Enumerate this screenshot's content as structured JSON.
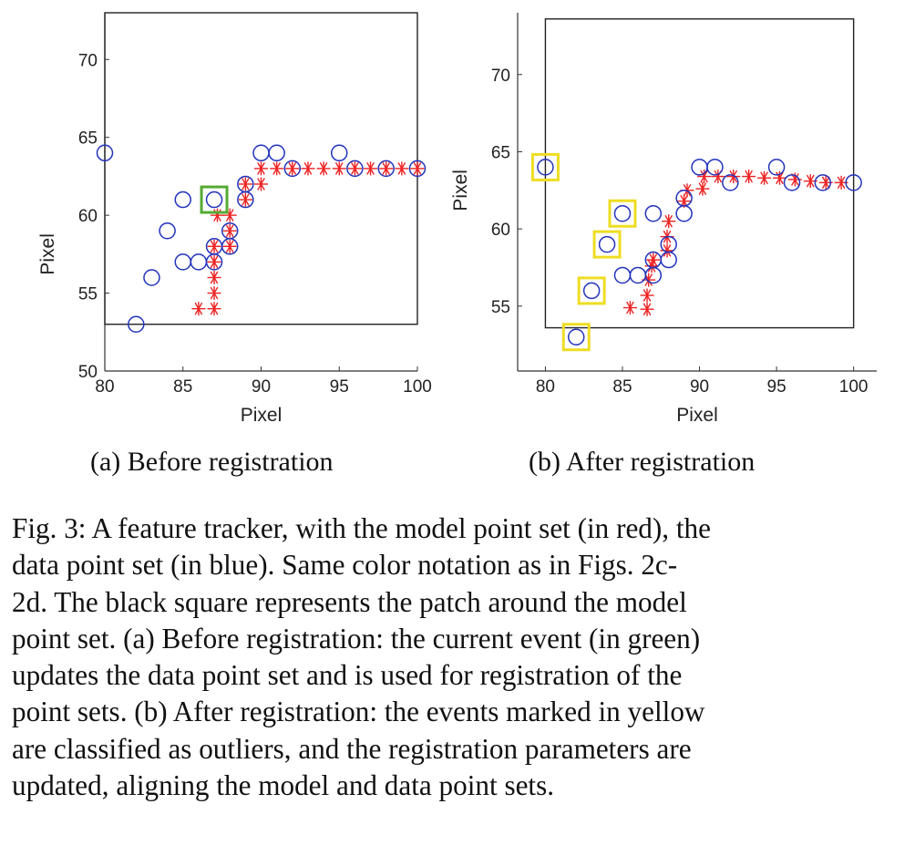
{
  "chart_data": [
    {
      "type": "scatter",
      "title": "",
      "xlabel": "Pixel",
      "ylabel": "Pixel",
      "xlim": [
        80,
        100
      ],
      "ylim": [
        50,
        73
      ],
      "xticks": [
        80,
        85,
        90,
        95,
        100
      ],
      "yticks": [
        50,
        55,
        60,
        65,
        70
      ],
      "grid": false,
      "series": [
        {
          "marker": "asterisk",
          "color": "#ee2222",
          "x": [
            86,
            87,
            87,
            87,
            87,
            87,
            87.2,
            88,
            88,
            88,
            89,
            89,
            90,
            90,
            91,
            92,
            93,
            94,
            95,
            96,
            97,
            98,
            99,
            100
          ],
          "y": [
            54,
            54,
            55,
            56,
            57,
            58,
            60,
            58,
            59,
            60,
            61,
            62,
            62,
            63,
            63,
            63,
            63,
            63,
            63,
            63,
            63,
            63,
            63,
            63
          ]
        },
        {
          "marker": "circle",
          "color": "#2233bb",
          "x": [
            80,
            82,
            83,
            84,
            85,
            85,
            86,
            87,
            87,
            87,
            88,
            88,
            89,
            89,
            90,
            91,
            92,
            95,
            96,
            98,
            100
          ],
          "y": [
            64,
            53,
            56,
            59,
            61,
            57,
            57,
            57,
            58,
            61,
            58,
            59,
            61,
            62,
            64,
            64,
            63,
            64,
            63,
            63,
            63
          ]
        }
      ],
      "highlight": {
        "color": "#55aa33",
        "points": [
          [
            87,
            61
          ]
        ]
      },
      "patch": {
        "x": [
          80,
          100
        ],
        "y": [
          53,
          73
        ]
      }
    },
    {
      "type": "scatter",
      "title": "",
      "xlabel": "Pixel",
      "ylabel": "Pixel",
      "xlim": [
        78.2,
        101.5
      ],
      "ylim": [
        50.8,
        74
      ],
      "xticks": [
        80,
        85,
        90,
        95,
        100
      ],
      "yticks": [
        55,
        60,
        65,
        70
      ],
      "grid": false,
      "series": [
        {
          "marker": "asterisk",
          "color": "#ee2222",
          "x": [
            85.5,
            86.6,
            86.6,
            86.7,
            86.9,
            87.0,
            87.9,
            87.9,
            88.0,
            89.0,
            89.2,
            90.2,
            90.3,
            91.2,
            92.2,
            93.2,
            94.2,
            95.2,
            96.2,
            97.2,
            98.2,
            99.2
          ],
          "y": [
            54.9,
            54.8,
            55.7,
            56.7,
            57.6,
            58.0,
            58.6,
            59.5,
            60.5,
            61.8,
            62.5,
            62.6,
            63.4,
            63.4,
            63.4,
            63.4,
            63.3,
            63.3,
            63.2,
            63.1,
            63.0,
            63.0
          ]
        },
        {
          "marker": "circle",
          "color": "#2233bb",
          "x": [
            80,
            82,
            83,
            84,
            85,
            85,
            86,
            87,
            87,
            87,
            88,
            88,
            89,
            89,
            90,
            91,
            92,
            95,
            96,
            98,
            100
          ],
          "y": [
            64,
            53,
            56,
            59,
            61,
            57,
            57,
            57,
            58,
            61,
            58,
            59,
            61,
            62,
            64,
            64,
            63,
            64,
            63,
            63,
            63
          ]
        }
      ],
      "highlight": {
        "color": "#eedd22",
        "points": [
          [
            80,
            64
          ],
          [
            82,
            53
          ],
          [
            83,
            56
          ],
          [
            84,
            59
          ],
          [
            85,
            61
          ]
        ]
      },
      "patch": {
        "x": [
          80,
          100
        ],
        "y": [
          53.6,
          73.6
        ]
      }
    }
  ],
  "subcaptions": {
    "a": "(a) Before registration",
    "b": "(b) After registration"
  },
  "caption": {
    "lines": [
      "Fig. 3: A feature tracker, with the model point set (in red), the",
      "data point set (in blue). Same color notation as in Figs. 2c-",
      "2d. The black square represents the patch around the model",
      "point set. (a) Before registration: the current event (in green)",
      "updates the data point set and is used for registration of the",
      "point sets. (b) After registration: the events marked in yellow",
      "are classified as outliers, and the registration parameters are",
      "updated, aligning the model and data point sets."
    ]
  }
}
